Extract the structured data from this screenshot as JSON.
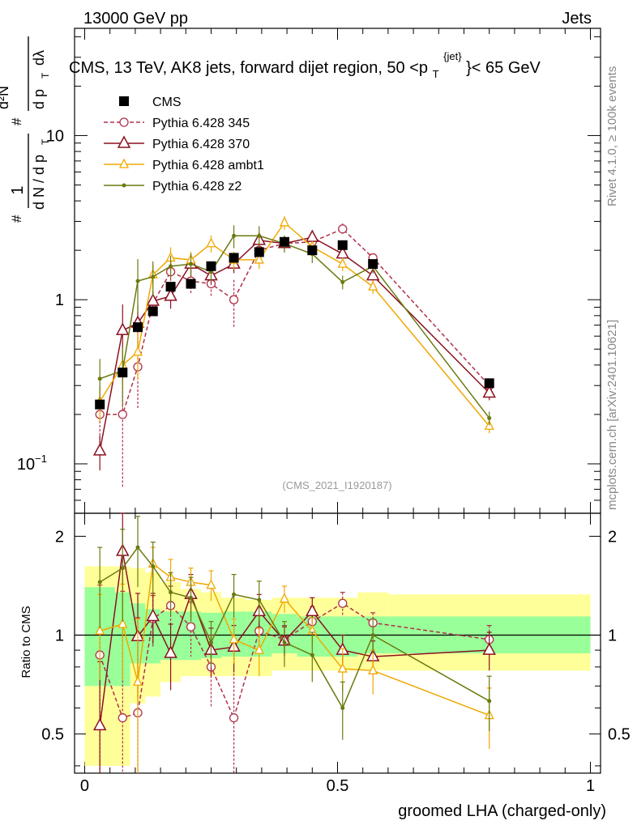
{
  "header": {
    "left": "13000 GeV pp",
    "right": "Jets",
    "title_main": "CMS, 13 TeV, AK8 jets, forward dijet region, 50 <p",
    "title_sub": "T",
    "title_sup": "{jet}",
    "title_tail": "}< 65 GeV"
  },
  "side_labels": {
    "rivet": "Rivet 4.1.0, ≥ 100k events",
    "mcplots": "mcplots.cern.ch [arXiv:2401.10621]"
  },
  "watermark": "(CMS_2021_I1920187)",
  "ylabel_top": {
    "hash1": "#",
    "one": "1",
    "dN_dpT": "d N / d p",
    "T1": "T",
    "hash2": "#",
    "d2N": "d²N",
    "dpT": "d p",
    "T2": "T",
    "dlambda": "dλ"
  },
  "ratio_ylabel": "Ratio to CMS",
  "xlabel": "groomed LHA (charged-only)",
  "colors": {
    "data": "#000000",
    "p345": "#b0304a",
    "p370": "#8b1020",
    "ambt1": "#f0a800",
    "z2": "#6b7a10",
    "band_inner": "#99ff99",
    "band_outer": "#ffff99"
  },
  "chart_data": {
    "type": "scatter",
    "x": [
      0.03,
      0.075,
      0.105,
      0.135,
      0.17,
      0.21,
      0.25,
      0.295,
      0.345,
      0.395,
      0.45,
      0.51,
      0.57,
      0.8
    ],
    "bin_edges": [
      0,
      0.06,
      0.09,
      0.12,
      0.15,
      0.19,
      0.23,
      0.27,
      0.32,
      0.37,
      0.42,
      0.48,
      0.54,
      0.6,
      1.0
    ],
    "xlim": [
      -0.02,
      1.02
    ],
    "ylim_main": [
      0.05,
      45
    ],
    "yscale_main": "log",
    "ylim_ratio": [
      0.38,
      2.35
    ],
    "yscale_ratio": "log",
    "xticks": [
      {
        "v": 0,
        "label": "0"
      },
      {
        "v": 0.5,
        "label": "0.5"
      },
      {
        "v": 1,
        "label": "1"
      }
    ],
    "yticks_main": [
      {
        "v": 0.1,
        "label": "10",
        "exp": "−1"
      },
      {
        "v": 1,
        "label": "1"
      },
      {
        "v": 10,
        "label": "10"
      }
    ],
    "yticks_ratio": [
      {
        "v": 0.5,
        "label": "0.5"
      },
      {
        "v": 1,
        "label": "1"
      },
      {
        "v": 2,
        "label": "2"
      }
    ],
    "data": {
      "name": "CMS",
      "values": [
        0.23,
        0.36,
        0.68,
        0.85,
        1.2,
        1.25,
        1.6,
        1.8,
        1.95,
        2.25,
        2.0,
        2.15,
        1.65,
        0.31
      ],
      "band_inner": [
        [
          0.7,
          1.4
        ],
        [
          0.7,
          1.35
        ],
        [
          0.82,
          1.25
        ],
        [
          0.82,
          1.2
        ],
        [
          0.84,
          1.18
        ],
        [
          0.84,
          1.18
        ],
        [
          0.85,
          1.17
        ],
        [
          0.86,
          1.18
        ],
        [
          0.86,
          1.18
        ],
        [
          0.88,
          1.16
        ],
        [
          0.86,
          1.14
        ],
        [
          0.86,
          1.14
        ],
        [
          0.88,
          1.14
        ],
        [
          0.88,
          1.14
        ]
      ],
      "band_outer": [
        [
          0.4,
          1.62
        ],
        [
          0.4,
          1.62
        ],
        [
          0.62,
          1.6
        ],
        [
          0.65,
          1.55
        ],
        [
          0.72,
          1.45
        ],
        [
          0.75,
          1.38
        ],
        [
          0.75,
          1.35
        ],
        [
          0.75,
          1.3
        ],
        [
          0.75,
          1.28
        ],
        [
          0.78,
          1.3
        ],
        [
          0.78,
          1.3
        ],
        [
          0.78,
          1.3
        ],
        [
          0.78,
          1.35
        ],
        [
          0.78,
          1.33
        ]
      ]
    },
    "series": [
      {
        "name": "Pythia 6.428 345",
        "key": "p345",
        "marker": "circle",
        "dashed": true,
        "values": [
          0.2,
          0.2,
          0.39,
          0.95,
          1.48,
          1.3,
          1.25,
          1.0,
          2.0,
          2.2,
          2.25,
          2.7,
          1.8,
          0.3
        ],
        "ratio": [
          0.87,
          0.56,
          0.58,
          1.12,
          1.23,
          1.06,
          0.8,
          0.56,
          1.03,
          0.97,
          1.1,
          1.25,
          1.09,
          0.97
        ],
        "ratio_err": [
          0.55,
          0.8,
          0.55,
          0.2,
          0.18,
          0.2,
          0.2,
          0.4,
          0.15,
          0.1,
          0.12,
          0.1,
          0.08,
          0.1
        ]
      },
      {
        "name": "Pythia 6.428 370",
        "key": "p370",
        "marker": "triangle",
        "dashed": false,
        "values": [
          0.12,
          0.65,
          0.72,
          0.98,
          1.05,
          1.65,
          1.4,
          1.65,
          2.3,
          2.2,
          2.4,
          1.9,
          1.4,
          0.27
        ],
        "ratio": [
          0.53,
          1.8,
          0.99,
          1.14,
          0.88,
          1.33,
          0.9,
          0.92,
          1.18,
          0.96,
          1.18,
          0.9,
          0.86,
          0.9
        ],
        "ratio_err": [
          0.3,
          0.55,
          0.35,
          0.2,
          0.2,
          0.2,
          0.15,
          0.15,
          0.15,
          0.1,
          0.12,
          0.1,
          0.1,
          0.12
        ]
      },
      {
        "name": "Pythia 6.428 ambt1",
        "key": "ambt1",
        "marker": "triangle-small",
        "dashed": false,
        "values": [
          0.24,
          0.4,
          0.48,
          1.42,
          1.8,
          1.75,
          2.2,
          1.75,
          1.75,
          2.95,
          2.1,
          1.65,
          1.2,
          0.17
        ],
        "ratio": [
          1.03,
          1.08,
          0.72,
          1.65,
          1.5,
          1.45,
          1.42,
          0.97,
          0.9,
          1.29,
          1.03,
          0.79,
          0.78,
          0.57
        ],
        "ratio_err": [
          0.3,
          0.35,
          0.4,
          0.2,
          0.2,
          0.15,
          0.15,
          0.15,
          0.15,
          0.12,
          0.1,
          0.12,
          0.12,
          0.12
        ]
      },
      {
        "name": "Pythia 6.428 z2",
        "key": "z2",
        "marker": "dot",
        "dashed": false,
        "values": [
          0.33,
          0.37,
          1.3,
          1.38,
          1.6,
          1.65,
          1.48,
          2.45,
          2.45,
          2.2,
          1.9,
          1.28,
          1.6,
          0.19
        ],
        "ratio": [
          1.45,
          1.6,
          1.85,
          1.62,
          1.35,
          1.3,
          0.95,
          1.33,
          1.28,
          0.95,
          0.87,
          0.6,
          1.0,
          0.63
        ],
        "ratio_err": [
          0.4,
          0.5,
          0.45,
          0.3,
          0.2,
          0.2,
          0.15,
          0.2,
          0.18,
          0.15,
          0.15,
          0.12,
          0.12,
          0.12
        ]
      }
    ],
    "legend": [
      {
        "label": "CMS",
        "key": "data"
      },
      {
        "label": "Pythia 6.428 345",
        "key": "p345"
      },
      {
        "label": "Pythia 6.428 370",
        "key": "p370"
      },
      {
        "label": "Pythia 6.428 ambt1",
        "key": "ambt1"
      },
      {
        "label": "Pythia 6.428 z2",
        "key": "z2"
      }
    ]
  }
}
